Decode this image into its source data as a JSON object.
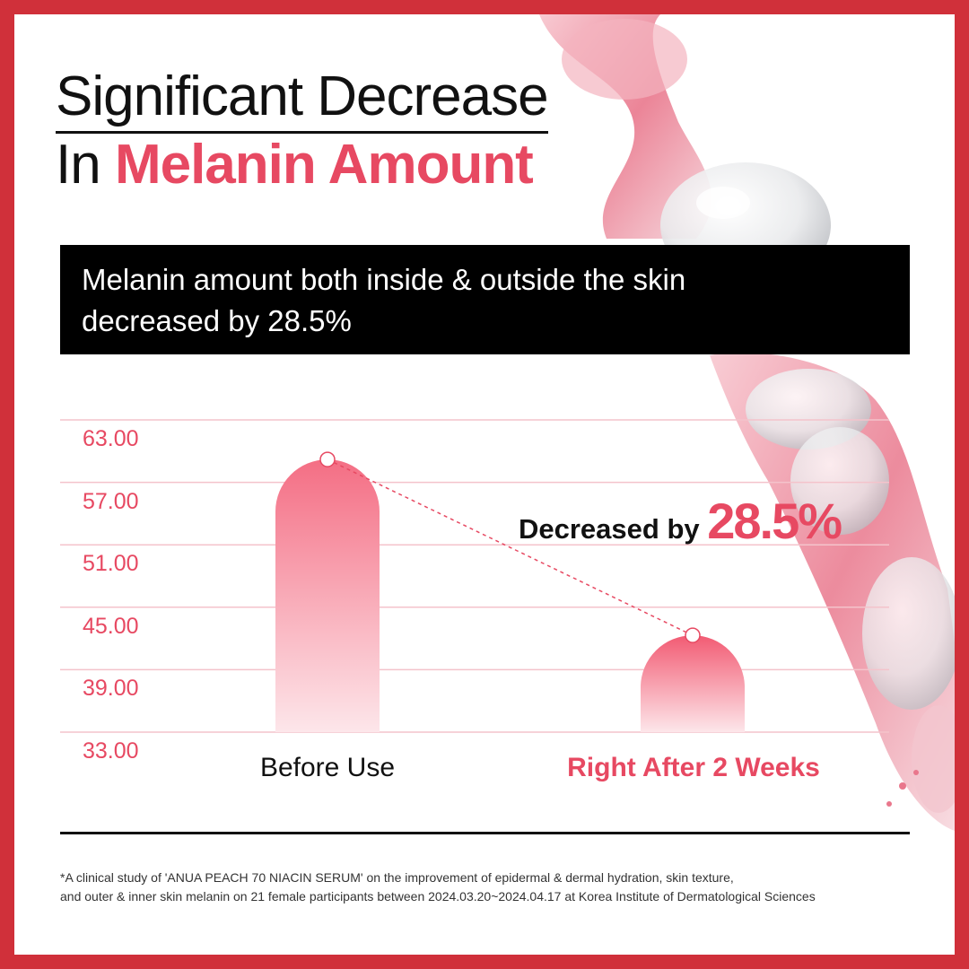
{
  "headline": {
    "line1": "Significant Decrease",
    "line2_prefix": "In ",
    "line2_accent": "Melanin Amount"
  },
  "callout": {
    "text_line1": "Melanin amount both inside & outside the skin",
    "text_line2": "decreased by 28.5%"
  },
  "annotation": {
    "lead": "Decreased by ",
    "value": "28.5%"
  },
  "chart_data": {
    "type": "bar",
    "categories": [
      "Before Use",
      "Right After 2 Weeks"
    ],
    "values": [
      59.2,
      42.3
    ],
    "ylim": [
      33,
      63
    ],
    "yticks": [
      "63.00",
      "57.00",
      "51.00",
      "45.00",
      "39.00",
      "33.00"
    ],
    "grid": true,
    "annotation": "Decreased by 28.5%",
    "colors": {
      "bar_top": "#f46e84",
      "bar_bottom": "#fde6ea",
      "bar2_top": "#f25b73",
      "grid": "#f4c3cb",
      "accent": "#e74962"
    }
  },
  "footnote": {
    "line1": "*A clinical study of 'ANUA PEACH 70 NIACIN SERUM' on the improvement of epidermal & dermal hydration, skin texture,",
    "line2": "and outer & inner skin melanin on 21 female participants between 2024.03.20~2024.04.17 at Korea Institute of Dermatological Sciences"
  },
  "colors": {
    "border": "#d0303a",
    "accent": "#e74962",
    "callout_bg": "#000000"
  }
}
